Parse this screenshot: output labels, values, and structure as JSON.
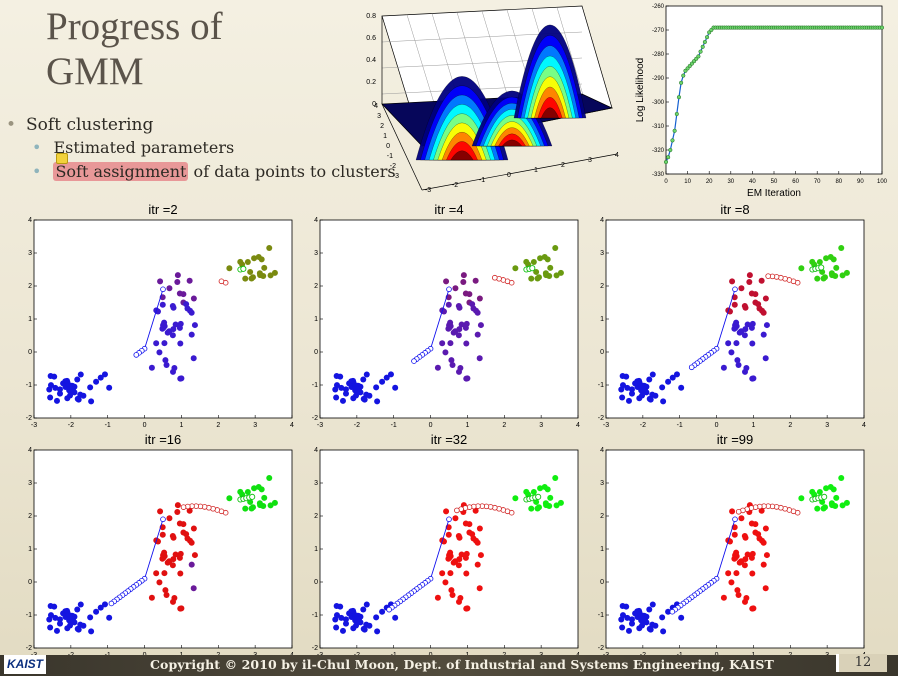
{
  "slide": {
    "title_line1": "Progress of",
    "title_line2": "GMM",
    "bullets": {
      "l1": "Soft clustering",
      "l2a": "Estimated parameters",
      "l2b_hl": "Soft assignment",
      "l2b_rest": " of data points to clusters"
    },
    "footer": {
      "copyright": "Copyright © 2010 by il-Chul Moon, Dept. of Industrial and Systems Engineering, KAIST",
      "logo_text": "KAIST",
      "page_number": "12"
    }
  },
  "colors": {
    "cluster_blue": "#1010ee",
    "cluster_red": "#ee1010",
    "cluster_green": "#10ee10",
    "purple": "#6a1a9a",
    "olive": "#7a8a10"
  },
  "chart_data": [
    {
      "type": "surface",
      "z_ticks": [
        "0.8",
        "0.6",
        "0.4",
        "0.2",
        "0"
      ],
      "y_ticks": [
        "4",
        "3",
        "2",
        "1",
        "0",
        "-1",
        "-2",
        "-3"
      ],
      "x_ticks": [
        "-3",
        "-2",
        "-1",
        "0",
        "1",
        "2",
        "3",
        "4"
      ],
      "peaks": [
        {
          "x": -1.0,
          "y": -0.8,
          "height": 0.55
        },
        {
          "x": 0.5,
          "y": 0.5,
          "height": 0.4
        },
        {
          "x": 2.8,
          "y": 2.5,
          "height": 0.7
        }
      ]
    },
    {
      "type": "line",
      "xlabel": "EM Iteration",
      "ylabel": "Log Likelihood",
      "xlim": [
        0,
        100
      ],
      "ylim": [
        -330,
        -260
      ],
      "x_ticks": [
        "0",
        "10",
        "20",
        "30",
        "40",
        "50",
        "60",
        "70",
        "80",
        "90",
        "100"
      ],
      "y_ticks": [
        "-260",
        "-270",
        "-280",
        "-290",
        "-300",
        "-310",
        "-320",
        "-330"
      ],
      "x": [
        0,
        1,
        2,
        3,
        4,
        5,
        6,
        7,
        8,
        9,
        10,
        11,
        12,
        13,
        14,
        15,
        16,
        17,
        18,
        19,
        20,
        21,
        22,
        23,
        24,
        25,
        30,
        40,
        50,
        60,
        70,
        80,
        90,
        100
      ],
      "y": [
        -325,
        -323,
        -320,
        -316,
        -312,
        -305,
        -298,
        -292,
        -289,
        -287,
        -286,
        -285,
        -284,
        -283,
        -282,
        -281,
        -279,
        -277,
        -275,
        -273,
        -271,
        -270,
        -269,
        -269,
        -269,
        -269,
        -269,
        -269,
        -269,
        -269,
        -269,
        -269,
        -269,
        -269
      ]
    },
    {
      "type": "scatter",
      "title": "itr =2",
      "xlim": [
        -3,
        4
      ],
      "ylim": [
        -2,
        4
      ],
      "x_ticks": [
        "-3",
        "-2",
        "-1",
        "0",
        "1",
        "2",
        "3",
        "4"
      ],
      "y_ticks": [
        "4",
        "3",
        "2",
        "1",
        "0",
        "-1",
        "-2"
      ]
    },
    {
      "type": "scatter",
      "title": "itr =4",
      "xlim": [
        -3,
        4
      ],
      "ylim": [
        -2,
        4
      ],
      "x_ticks": [
        "-3",
        "-2",
        "-1",
        "0",
        "1",
        "2",
        "3",
        "4"
      ],
      "y_ticks": [
        "4",
        "3",
        "2",
        "1",
        "0",
        "-1",
        "-2"
      ]
    },
    {
      "type": "scatter",
      "title": "itr =8",
      "xlim": [
        -3,
        4
      ],
      "ylim": [
        -2,
        4
      ],
      "x_ticks": [
        "-3",
        "-2",
        "-1",
        "0",
        "1",
        "2",
        "3",
        "4"
      ],
      "y_ticks": [
        "4",
        "3",
        "2",
        "1",
        "0",
        "-1",
        "-2"
      ]
    },
    {
      "type": "scatter",
      "title": "itr =16",
      "xlim": [
        -3,
        4
      ],
      "ylim": [
        -2,
        4
      ],
      "x_ticks": [
        "-3",
        "-2",
        "-1",
        "0",
        "1",
        "2",
        "3",
        "4"
      ],
      "y_ticks": [
        "4",
        "3",
        "2",
        "1",
        "0",
        "-1",
        "-2"
      ]
    },
    {
      "type": "scatter",
      "title": "itr =32",
      "xlim": [
        -3,
        4
      ],
      "ylim": [
        -2,
        4
      ],
      "x_ticks": [
        "-3",
        "-2",
        "-1",
        "0",
        "1",
        "2",
        "3",
        "4"
      ],
      "y_ticks": [
        "4",
        "3",
        "2",
        "1",
        "0",
        "-1",
        "-2"
      ]
    },
    {
      "type": "scatter",
      "title": "itr =99",
      "xlim": [
        -3,
        4
      ],
      "ylim": [
        -2,
        4
      ],
      "x_ticks": [
        "-3",
        "-2",
        "-1",
        "0",
        "1",
        "2",
        "3",
        "4"
      ],
      "y_ticks": [
        "4",
        "3",
        "2",
        "1",
        "0",
        "-1",
        "-2"
      ]
    }
  ]
}
